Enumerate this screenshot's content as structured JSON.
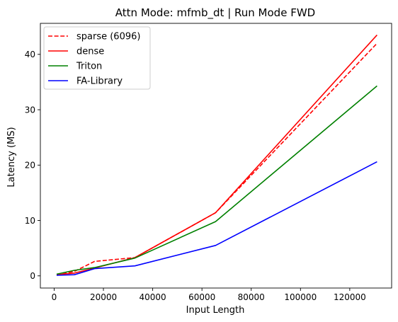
{
  "chart_data": {
    "type": "line",
    "title": "Attn Mode: mfmb_dt | Run Mode FWD",
    "xlabel": "Input Length",
    "ylabel": "Latency (MS)",
    "xlim": [
      -5600,
      137000
    ],
    "ylim": [
      -2.2,
      45.6
    ],
    "xticks": [
      0,
      20000,
      40000,
      60000,
      80000,
      100000,
      120000
    ],
    "xtick_labels": [
      "0",
      "20000",
      "40000",
      "60000",
      "80000",
      "100000",
      "120000"
    ],
    "yticks": [
      0,
      10,
      20,
      30,
      40
    ],
    "ytick_labels": [
      "0",
      "10",
      "20",
      "30",
      "40"
    ],
    "grid": false,
    "legend_position": "top-left",
    "series": [
      {
        "name": "sparse (6096)",
        "color": "#ff0000",
        "dashed": true,
        "x": [
          1024,
          8192,
          16384,
          32768,
          65536,
          131072
        ],
        "y": [
          0.1,
          0.8,
          2.6,
          3.3,
          11.4,
          42.0
        ]
      },
      {
        "name": "dense",
        "color": "#ff0000",
        "dashed": false,
        "x": [
          1024,
          8192,
          16384,
          32768,
          65536,
          131072
        ],
        "y": [
          0.2,
          0.5,
          1.4,
          3.3,
          11.4,
          43.5
        ]
      },
      {
        "name": "Triton",
        "color": "#008000",
        "dashed": false,
        "x": [
          1024,
          8192,
          16384,
          32768,
          65536,
          131072
        ],
        "y": [
          0.3,
          1.0,
          1.5,
          3.2,
          9.8,
          34.3
        ]
      },
      {
        "name": "FA-Library",
        "color": "#0000ff",
        "dashed": false,
        "x": [
          1024,
          8192,
          16384,
          32768,
          65536,
          131072
        ],
        "y": [
          0.1,
          0.2,
          1.3,
          1.8,
          5.5,
          20.6
        ]
      }
    ]
  }
}
